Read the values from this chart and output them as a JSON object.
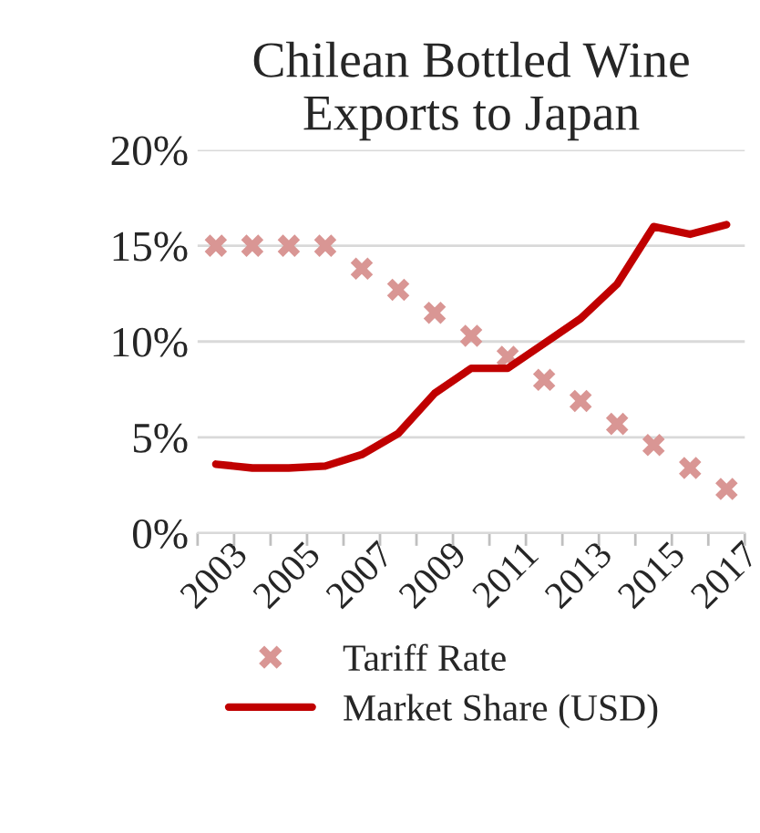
{
  "chart_data": {
    "type": "line",
    "title": "Chilean Bottled Wine\nExports to Japan",
    "categories": [
      "2003",
      null,
      "2005",
      null,
      "2007",
      null,
      "2009",
      null,
      "2011",
      null,
      "2013",
      null,
      "2015",
      null,
      "2017"
    ],
    "series": [
      {
        "name": "Tariff Rate",
        "type": "scatter",
        "marker": "cross",
        "color": "#d99694",
        "values": [
          15,
          15,
          15,
          15,
          13.8,
          12.7,
          11.5,
          10.3,
          9.2,
          8.0,
          6.9,
          5.7,
          4.6,
          3.4,
          2.3
        ]
      },
      {
        "name": "Market Share (USD)",
        "marker": "none",
        "line_style": "solid",
        "color": "#c00000",
        "values": [
          3.6,
          3.4,
          3.4,
          3.5,
          4.1,
          5.2,
          7.3,
          8.6,
          8.6,
          9.9,
          11.2,
          13.0,
          16.0,
          15.6,
          16.1
        ]
      }
    ],
    "ylim": [
      0,
      20
    ],
    "yticks": [
      {
        "value": 0,
        "label": "0%"
      },
      {
        "value": 5,
        "label": "5%"
      },
      {
        "value": 10,
        "label": "10%"
      },
      {
        "value": 15,
        "label": "15%"
      },
      {
        "value": 20,
        "label": "20%"
      }
    ],
    "grid": "y",
    "legend": "bottom"
  }
}
